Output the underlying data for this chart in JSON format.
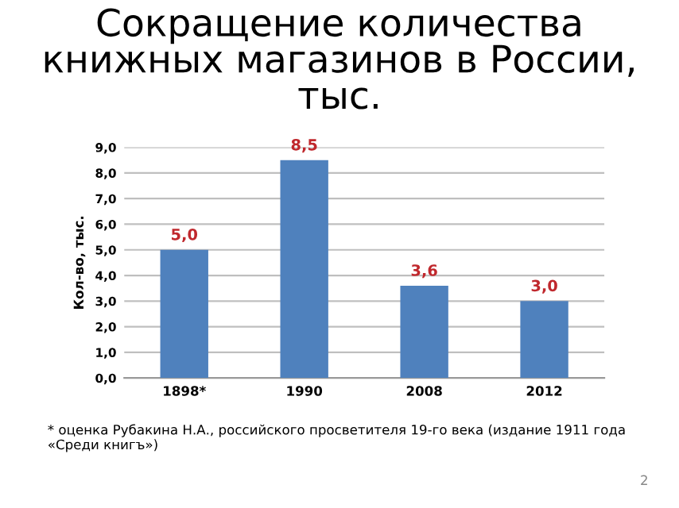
{
  "chart_data": {
    "type": "bar",
    "title": "Сокращение количества книжных магазинов в России, тыс.",
    "ylabel": "Кол-во, тыс.",
    "categories": [
      "1898*",
      "1990",
      "2008",
      "2012"
    ],
    "values": [
      5.0,
      8.5,
      3.6,
      3.0
    ],
    "value_labels": [
      "5,0",
      "8,5",
      "3,6",
      "3,0"
    ],
    "color": "#4f81bd",
    "ylim": [
      0,
      9
    ],
    "yticks": [
      {
        "value": 0,
        "label": "0,0"
      },
      {
        "value": 1,
        "label": "1,0"
      },
      {
        "value": 2,
        "label": "2,0"
      },
      {
        "value": 3,
        "label": "3,0"
      },
      {
        "value": 4,
        "label": "4,0"
      },
      {
        "value": 5,
        "label": "5,0"
      },
      {
        "value": 6,
        "label": "6,0"
      },
      {
        "value": 7,
        "label": "7,0"
      },
      {
        "value": 8,
        "label": "8,0"
      },
      {
        "value": 9,
        "label": "9,0"
      }
    ],
    "grid": "y",
    "annotations": [
      "* оценка Рубакина Н.А., российского просветителя 19-го века (издание 1911 года «Среди книгъ»)",
      "2"
    ]
  }
}
